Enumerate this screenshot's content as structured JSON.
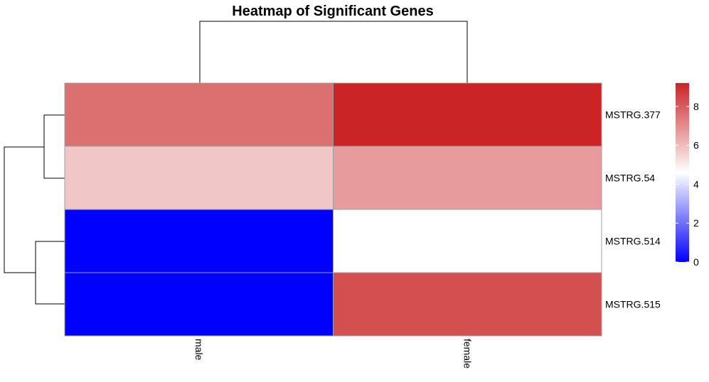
{
  "chart_data": {
    "type": "heatmap",
    "title": "Heatmap of Significant Genes",
    "columns": [
      "male",
      "female"
    ],
    "rows": [
      "MSTRG.377",
      "MSTRG.54",
      "MSTRG.514",
      "MSTRG.515"
    ],
    "values": [
      [
        7.6,
        9.2
      ],
      [
        5.8,
        6.7
      ],
      [
        0.0,
        4.6
      ],
      [
        0.0,
        8.3
      ]
    ],
    "color_scale": {
      "low_color": "#0000ff",
      "mid_color": "#ffffff",
      "high_color": "#ca2426",
      "min": 0,
      "mid": 4.6,
      "max": 9.2,
      "ticks": [
        0,
        2,
        4,
        6,
        8
      ],
      "tick_labels": [
        "0",
        "2",
        "4",
        "6",
        "8"
      ]
    },
    "legend_position": "right",
    "column_dendrogram": true,
    "row_dendrogram": true
  }
}
